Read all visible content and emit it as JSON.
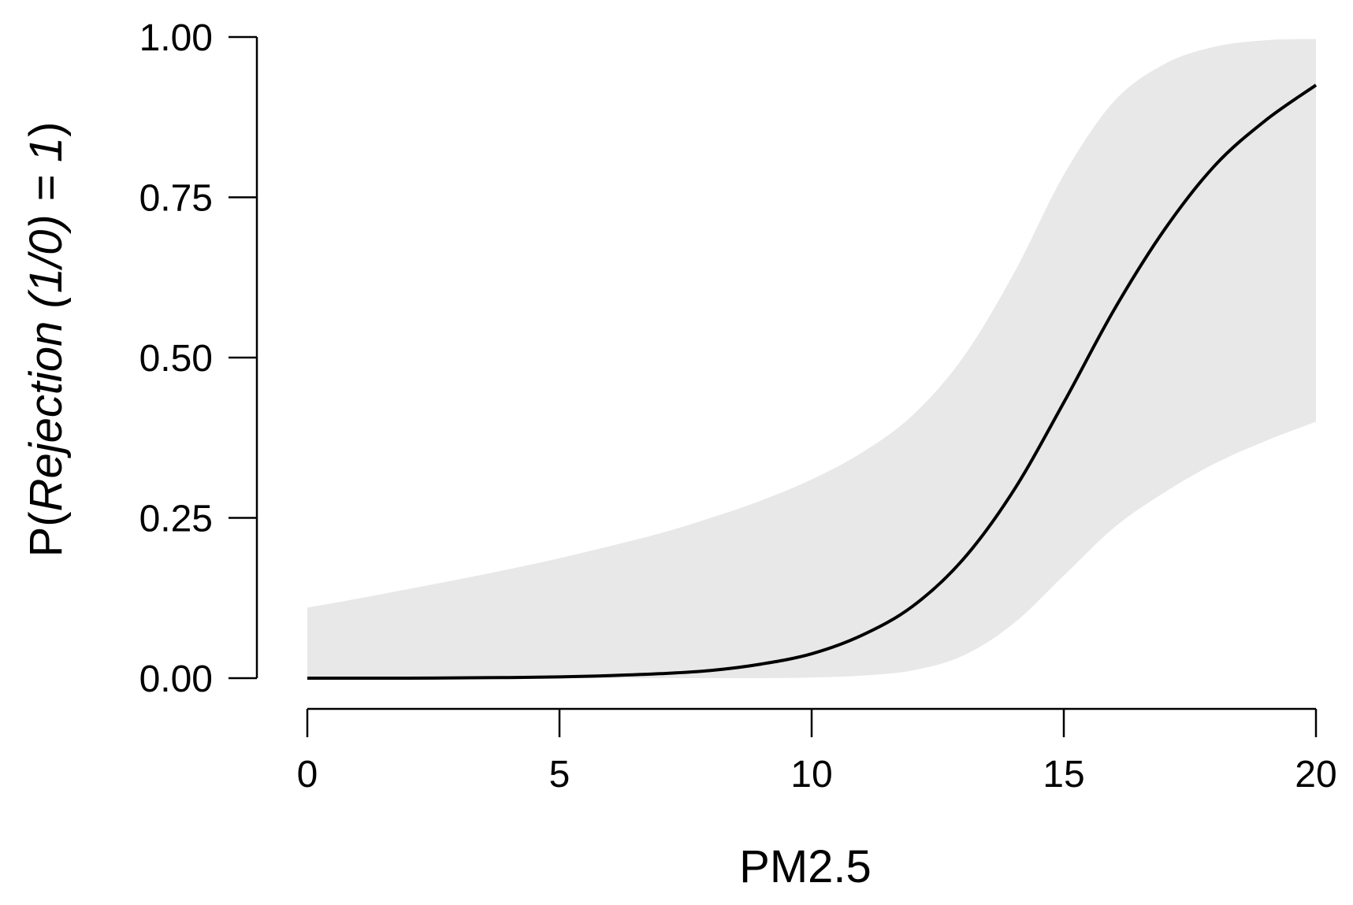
{
  "chart_data": {
    "type": "line",
    "title": "",
    "xlabel": "PM2.5",
    "ylabel": {
      "prefix": "P(",
      "italic": "Rejection (1/0) = 1",
      "suffix": ")"
    },
    "xlim": [
      0,
      20
    ],
    "ylim": [
      0,
      1
    ],
    "x_ticks": [
      {
        "value": 0,
        "label": "0"
      },
      {
        "value": 5,
        "label": "5"
      },
      {
        "value": 10,
        "label": "10"
      },
      {
        "value": 15,
        "label": "15"
      },
      {
        "value": 20,
        "label": "20"
      }
    ],
    "y_ticks": [
      {
        "value": 0,
        "label": "0.00"
      },
      {
        "value": 0.25,
        "label": "0.25"
      },
      {
        "value": 0.5,
        "label": "0.50"
      },
      {
        "value": 0.75,
        "label": "0.75"
      },
      {
        "value": 1,
        "label": "1.00"
      }
    ],
    "grid": false,
    "legend": "none",
    "series": [
      {
        "kind": "line",
        "color": "#000000",
        "x": [
          0,
          1,
          2,
          3,
          4,
          5,
          6,
          7,
          8,
          9,
          10,
          11,
          12,
          13,
          14,
          15,
          16,
          17,
          18,
          19,
          20
        ],
        "y": [
          0.0,
          0.0,
          0.0,
          0.0005,
          0.001,
          0.002,
          0.004,
          0.007,
          0.012,
          0.022,
          0.038,
          0.067,
          0.112,
          0.185,
          0.292,
          0.43,
          0.575,
          0.7,
          0.8,
          0.87,
          0.925
        ]
      },
      {
        "kind": "band",
        "color": "#e8e8e8",
        "x": [
          0,
          1,
          2,
          3,
          4,
          5,
          6,
          7,
          8,
          9,
          10,
          11,
          12,
          13,
          14,
          15,
          16,
          17,
          18,
          19,
          20
        ],
        "lower": [
          0.0,
          0.0,
          0.0,
          0.0,
          0.0,
          0.0,
          0.0,
          0.0,
          0.0,
          0.0,
          0.001,
          0.004,
          0.012,
          0.035,
          0.085,
          0.16,
          0.235,
          0.29,
          0.335,
          0.37,
          0.4
        ],
        "upper": [
          0.11,
          0.124,
          0.139,
          0.154,
          0.17,
          0.187,
          0.206,
          0.226,
          0.25,
          0.277,
          0.31,
          0.352,
          0.41,
          0.5,
          0.63,
          0.785,
          0.9,
          0.958,
          0.985,
          0.995,
          0.997
        ]
      }
    ]
  }
}
